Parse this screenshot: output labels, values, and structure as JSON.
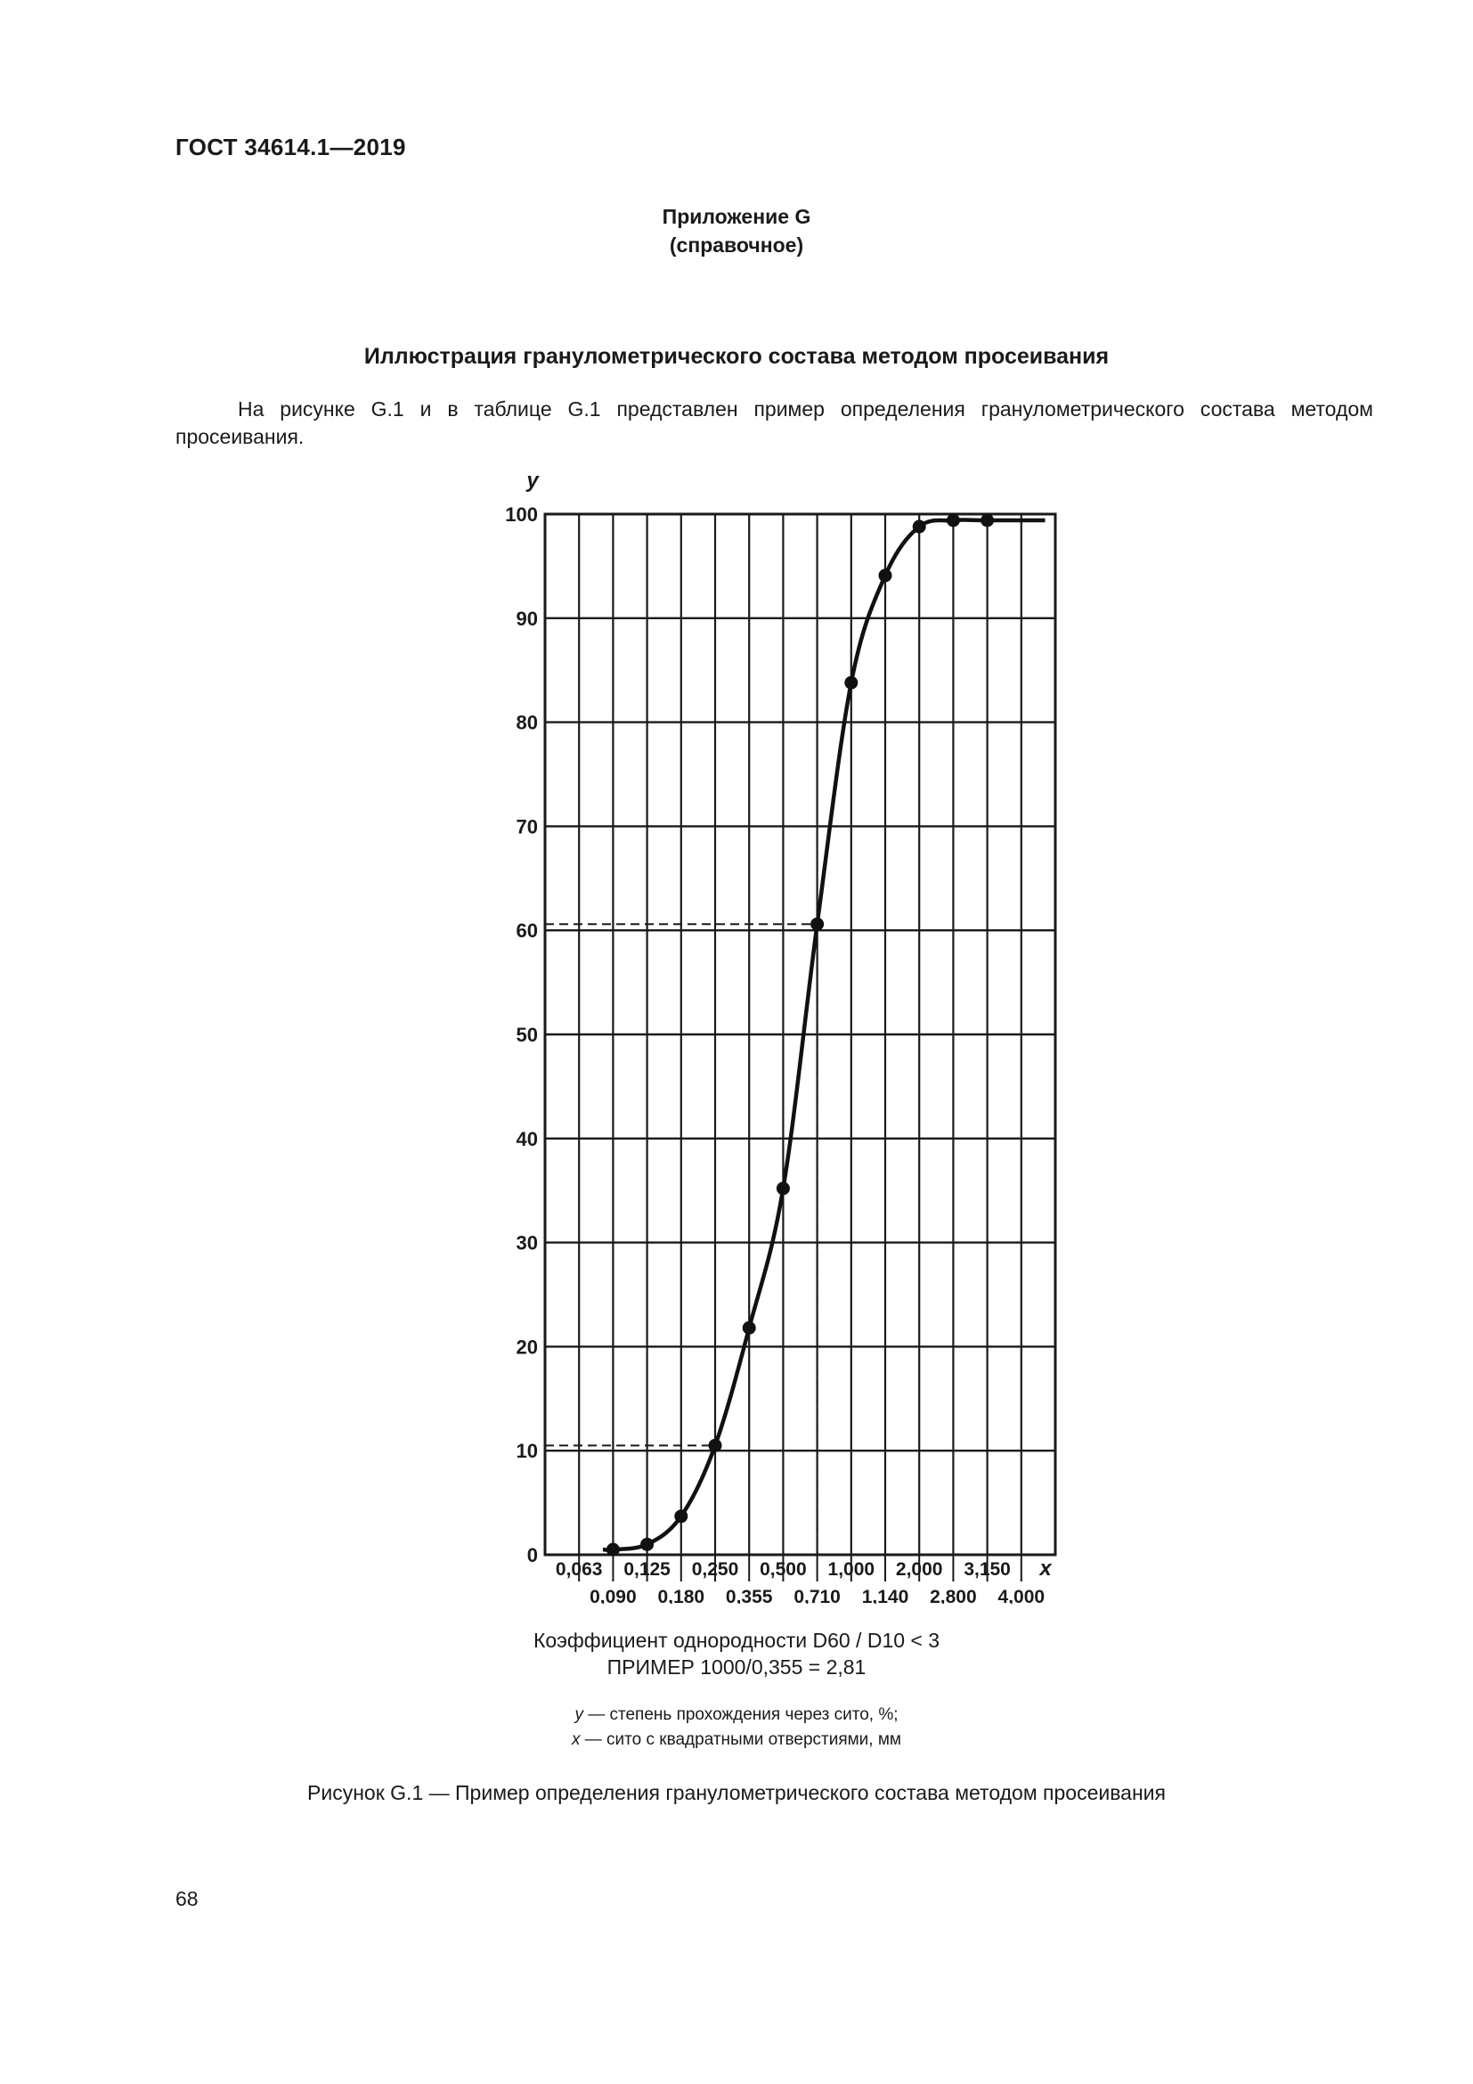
{
  "document": {
    "header": "ГОСТ 34614.1—2019",
    "appendix": "Приложение G",
    "appendix_type": "(справочное)",
    "section_title": "Иллюстрация гранулометрического состава методом просеивания",
    "intro": "На рисунке G.1 и в таблице G.1 представлен пример определения гранулометрического состава методом просеивания.",
    "coefficient": "Коэффициент однородности D60 / D10 < 3",
    "example": "ПРИМЕР 1000/0,355 = 2,81",
    "legend_y_symbol": "y",
    "legend_y_text": " — степень прохождения через сито, %;",
    "legend_x_symbol": "x",
    "legend_x_text": " — сито с квадратными отверстиями, мм",
    "figure_caption": "Рисунок G.1 — Пример определения гранулометрического состава методом просеивания",
    "page_number": "68"
  },
  "chart_data": {
    "type": "line",
    "xlabel": "x",
    "ylabel": "y",
    "ylim": [
      0,
      100
    ],
    "ytick_labels": [
      "0",
      "10",
      "20",
      "30",
      "40",
      "50",
      "60",
      "70",
      "80",
      "90",
      "100"
    ],
    "x_categories": [
      "0,063",
      "0,090",
      "0,125",
      "0,180",
      "0,250",
      "0,355",
      "0,500",
      "0,710",
      "1,000",
      "1,140",
      "2,000",
      "2,800",
      "3,150",
      "4,000"
    ],
    "x_upper_labels": [
      "0,063",
      "0,125",
      "0,250",
      "0,500",
      "1,000",
      "2,000",
      "3,150"
    ],
    "x_lower_labels": [
      "0,090",
      "0,180",
      "0,355",
      "0,710",
      "1,140",
      "2,800",
      "4,000"
    ],
    "grid": true,
    "series": [
      {
        "points": [
          {
            "x": "0,090",
            "y": 0.5
          },
          {
            "x": "0,125",
            "y": 1
          },
          {
            "x": "0,180",
            "y": 3.7
          },
          {
            "x": "0,250",
            "y": 10.5
          },
          {
            "x": "0,355",
            "y": 21.8
          },
          {
            "x": "0,500",
            "y": 35.2
          },
          {
            "x": "0,710",
            "y": 60.6
          },
          {
            "x": "1,000",
            "y": 83.8
          },
          {
            "x": "1,140",
            "y": 94.1
          },
          {
            "x": "2,000",
            "y": 98.8
          },
          {
            "x": "2,800",
            "y": 99.4
          },
          {
            "x": "3,150",
            "y": 99.4
          }
        ]
      }
    ],
    "reference_lines": [
      {
        "y": 10.5,
        "x": "0,250"
      },
      {
        "y": 60.6,
        "x": "0,710"
      }
    ]
  }
}
